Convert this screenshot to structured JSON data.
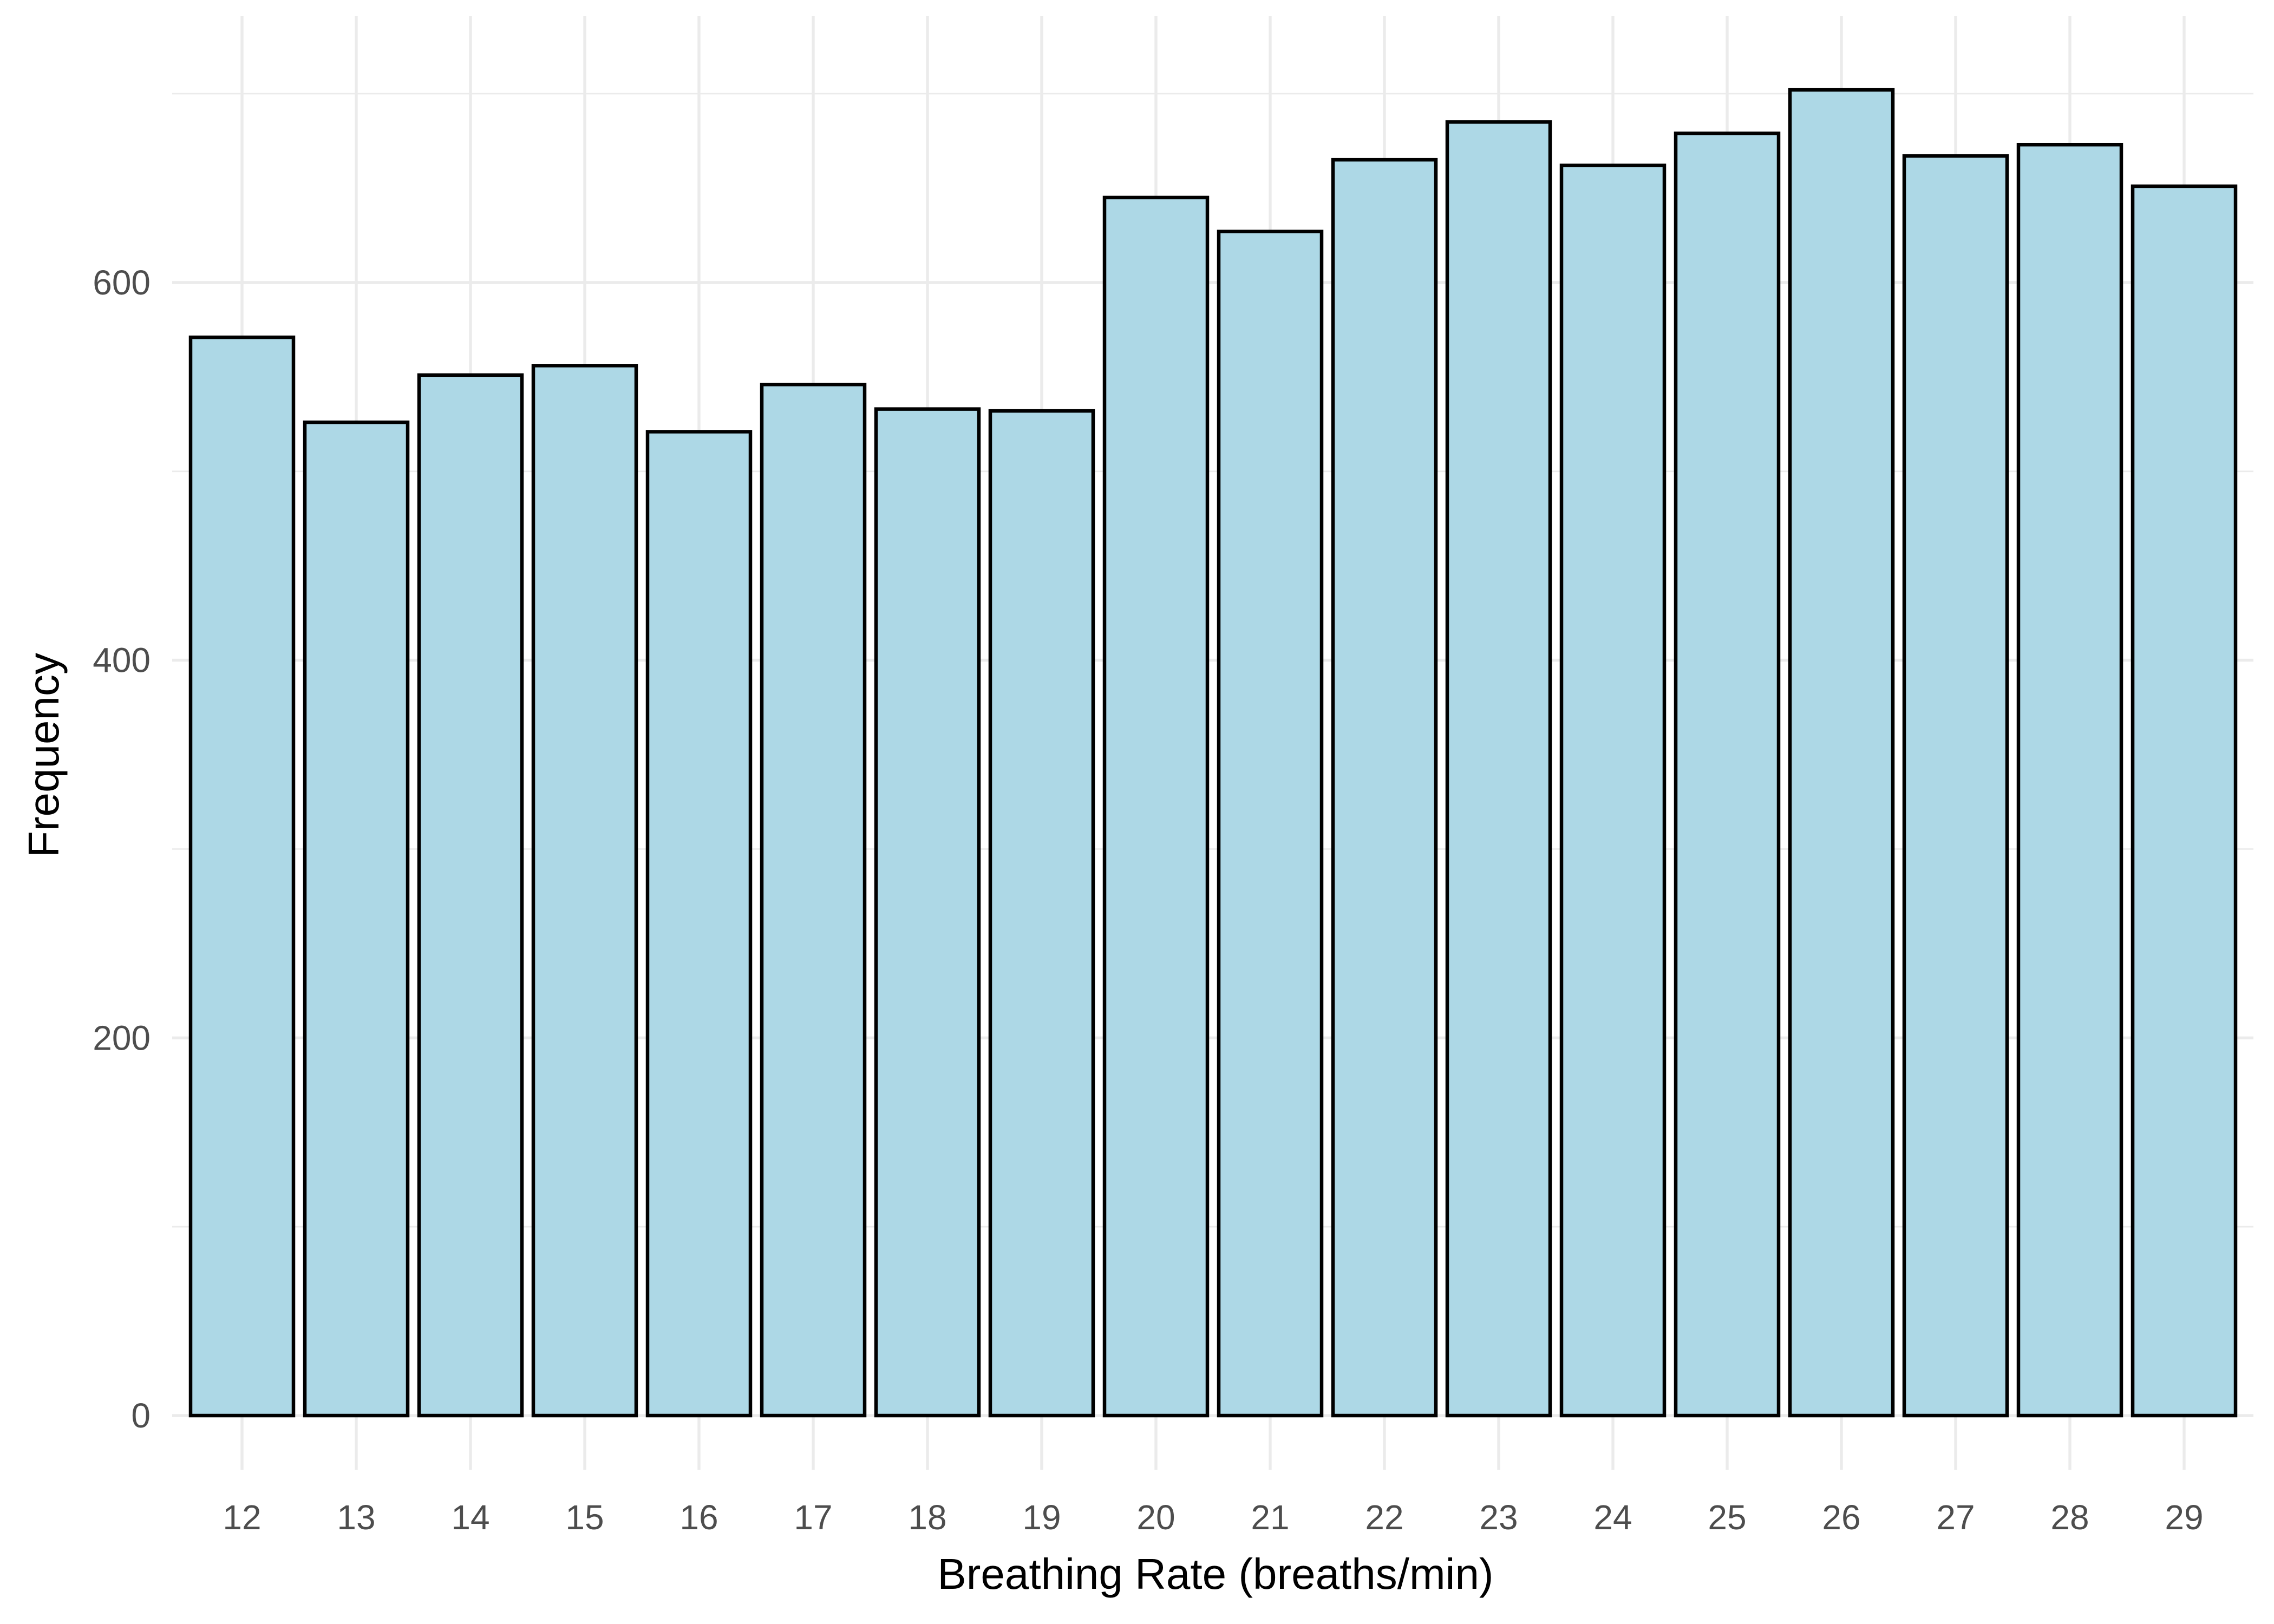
{
  "chart_data": {
    "type": "bar",
    "title": "",
    "xlabel": "Breathing Rate (breaths/min)",
    "ylabel": "Frequency",
    "categories": [
      "12",
      "13",
      "14",
      "15",
      "16",
      "17",
      "18",
      "19",
      "20",
      "21",
      "22",
      "23",
      "24",
      "25",
      "26",
      "27",
      "28",
      "29"
    ],
    "values": [
      571,
      526,
      551,
      556,
      521,
      546,
      533,
      532,
      645,
      627,
      665,
      685,
      662,
      679,
      702,
      667,
      673,
      651
    ],
    "yticks": [
      0,
      200,
      400,
      600
    ],
    "ylim": [
      0,
      720
    ],
    "grid": true,
    "legend": "none",
    "colors": {
      "bar_fill": "#add8e6",
      "bar_outline": "#000000",
      "grid": "#ebebeb",
      "tick_text": "#4d4d4d",
      "axis_text": "#000000"
    }
  }
}
